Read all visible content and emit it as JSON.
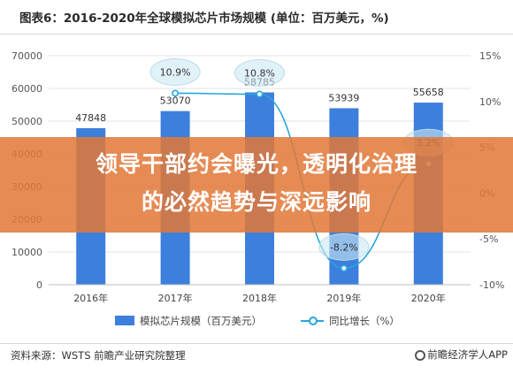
{
  "title": "图表6：2016-2020年全球模拟芯片市场规模 (单位：百万美元，%)",
  "banner": {
    "line1": "领导干部约会曝光，透明化治理",
    "line2": "的必然趋势与深远影响"
  },
  "source": "资料来源：WSTS 前瞻产业研究院整理",
  "logo": "前瞻经济学人APP",
  "colors": {
    "bar": "#3d7fdd",
    "line": "#29a6dc",
    "banner": "#e27838"
  },
  "chart_data": {
    "type": "bar",
    "categories": [
      "2016年",
      "2017年",
      "2018年",
      "2019年",
      "2020年"
    ],
    "series": [
      {
        "name": "模拟芯片规模（百万美元）",
        "type": "bar",
        "axis": "left",
        "values": [
          47848,
          53070,
          58785,
          53939,
          55658
        ],
        "labels": [
          "47848",
          "53070",
          "58785",
          "53939",
          "55658"
        ]
      },
      {
        "name": "同比增长（%）",
        "type": "line",
        "axis": "right",
        "values": [
          null,
          10.9,
          10.8,
          -8.2,
          3.2
        ],
        "labels": [
          "",
          "10.9%",
          "10.8%",
          "-8.2%",
          "3.2%"
        ]
      }
    ],
    "y_left": {
      "min": 0,
      "max": 70000,
      "ticks": [
        "0",
        "10000",
        "20000",
        "30000",
        "40000",
        "50000",
        "60000",
        "70000"
      ]
    },
    "y_right": {
      "min": -10,
      "max": 15,
      "ticks": [
        "-10%",
        "-5%",
        "0%",
        "5%",
        "10%",
        "15%"
      ]
    },
    "grid": true,
    "legend_position": "bottom"
  }
}
